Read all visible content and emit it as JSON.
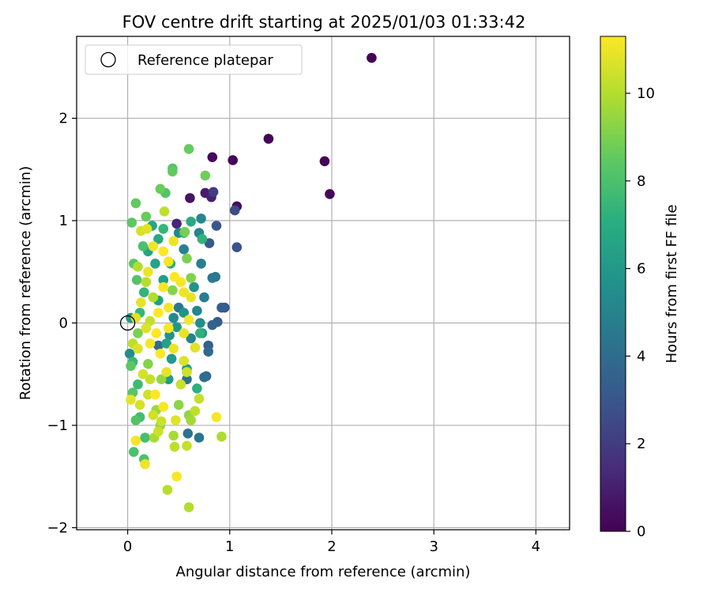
{
  "chart_data": {
    "type": "scatter",
    "title": "FOV centre drift starting at 2025/01/03 01:33:42",
    "xlabel": "Angular distance from reference (arcmin)",
    "ylabel": "Rotation from reference (arcmin)",
    "xlim": [
      -0.5,
      4.33
    ],
    "ylim": [
      -2.02,
      2.8
    ],
    "xticks": [
      0,
      1,
      2,
      3,
      4
    ],
    "yticks": [
      -2,
      -1,
      0,
      1,
      2
    ],
    "xtick_labels": [
      "0",
      "1",
      "2",
      "3",
      "4"
    ],
    "ytick_labels": [
      "−2",
      "−1",
      "0",
      "1",
      "2"
    ],
    "grid": true,
    "legend": {
      "location": "upper-left",
      "entries": [
        {
          "label": "Reference platepar",
          "marker": "open-circle",
          "x": 0,
          "y": 0
        }
      ]
    },
    "colorbar": {
      "label": "Hours from first FF file",
      "colormap": "viridis",
      "range": [
        0,
        11.3
      ],
      "ticks": [
        0,
        2,
        4,
        6,
        8,
        10
      ],
      "tick_labels": [
        "0",
        "2",
        "4",
        "6",
        "8",
        "10"
      ]
    },
    "series": [
      {
        "color_by": "hours",
        "points": [
          {
            "x": 2.39,
            "y": 2.59,
            "c": 0.0
          },
          {
            "x": 1.38,
            "y": 1.8,
            "c": 0.1
          },
          {
            "x": 1.93,
            "y": 1.58,
            "c": 0.1
          },
          {
            "x": 1.03,
            "y": 1.59,
            "c": 0.2
          },
          {
            "x": 1.98,
            "y": 1.26,
            "c": 0.2
          },
          {
            "x": 0.83,
            "y": 1.62,
            "c": 0.3
          },
          {
            "x": 1.07,
            "y": 1.14,
            "c": 0.4
          },
          {
            "x": 0.61,
            "y": 1.22,
            "c": 0.6
          },
          {
            "x": 0.76,
            "y": 1.27,
            "c": 0.8
          },
          {
            "x": 0.82,
            "y": 1.23,
            "c": 1.0
          },
          {
            "x": 0.48,
            "y": 0.97,
            "c": 1.2
          },
          {
            "x": 0.84,
            "y": 1.28,
            "c": 2.0
          },
          {
            "x": 1.05,
            "y": 1.1,
            "c": 2.6
          },
          {
            "x": 1.07,
            "y": 0.74,
            "c": 2.9
          },
          {
            "x": 0.87,
            "y": 0.95,
            "c": 3.0
          },
          {
            "x": 0.8,
            "y": 0.78,
            "c": 3.2
          },
          {
            "x": 0.95,
            "y": 0.15,
            "c": 3.1
          },
          {
            "x": 0.92,
            "y": 0.15,
            "c": 3.4
          },
          {
            "x": 0.88,
            "y": 0.01,
            "c": 3.3
          },
          {
            "x": 0.83,
            "y": -0.02,
            "c": 3.6
          },
          {
            "x": 0.79,
            "y": -0.22,
            "c": 3.5
          },
          {
            "x": 0.79,
            "y": -0.28,
            "c": 3.8
          },
          {
            "x": 0.77,
            "y": -0.52,
            "c": 3.7
          },
          {
            "x": 0.75,
            "y": -0.53,
            "c": 4.0
          },
          {
            "x": 0.58,
            "y": -0.55,
            "c": 4.2
          },
          {
            "x": 0.59,
            "y": -1.08,
            "c": 4.3
          },
          {
            "x": 0.7,
            "y": -1.12,
            "c": 4.4
          },
          {
            "x": 0.86,
            "y": 0.45,
            "c": 4.5
          },
          {
            "x": 0.83,
            "y": 0.44,
            "c": 4.6
          },
          {
            "x": 0.75,
            "y": 0.25,
            "c": 4.8
          },
          {
            "x": 0.72,
            "y": 0.58,
            "c": 4.9
          },
          {
            "x": 0.55,
            "y": 0.72,
            "c": 5.0
          },
          {
            "x": 0.5,
            "y": 0.88,
            "c": 5.1
          },
          {
            "x": 0.7,
            "y": 0.88,
            "c": 5.2
          },
          {
            "x": 0.72,
            "y": 1.02,
            "c": 5.3
          },
          {
            "x": 0.71,
            "y": 0.0,
            "c": 5.5
          },
          {
            "x": 0.73,
            "y": -0.1,
            "c": 5.6
          },
          {
            "x": 0.45,
            "y": 0.05,
            "c": 5.4
          },
          {
            "x": 0.41,
            "y": -0.12,
            "c": 5.7
          },
          {
            "x": 0.55,
            "y": 0.1,
            "c": 5.8
          },
          {
            "x": 0.48,
            "y": -0.04,
            "c": 5.9
          },
          {
            "x": 0.58,
            "y": -0.45,
            "c": 6.0
          },
          {
            "x": 0.43,
            "y": -0.35,
            "c": 6.1
          },
          {
            "x": 0.4,
            "y": -0.55,
            "c": 6.2
          },
          {
            "x": 0.35,
            "y": 0.42,
            "c": 6.3
          },
          {
            "x": 0.3,
            "y": 0.22,
            "c": 6.4
          },
          {
            "x": 0.27,
            "y": 0.58,
            "c": 6.5
          },
          {
            "x": 0.2,
            "y": 0.7,
            "c": 6.6
          },
          {
            "x": 0.24,
            "y": 0.95,
            "c": 6.7
          },
          {
            "x": 0.3,
            "y": 0.82,
            "c": 6.8
          },
          {
            "x": 0.62,
            "y": 0.99,
            "c": 6.9
          },
          {
            "x": 0.55,
            "y": 0.88,
            "c": 7.0
          },
          {
            "x": 0.68,
            "y": -0.64,
            "c": 7.1
          },
          {
            "x": 0.71,
            "y": -0.1,
            "c": 7.2
          },
          {
            "x": 0.73,
            "y": 0.82,
            "c": 7.3
          },
          {
            "x": 0.16,
            "y": 0.3,
            "c": 7.4
          },
          {
            "x": 0.12,
            "y": 0.1,
            "c": 7.5
          },
          {
            "x": 0.05,
            "y": -0.38,
            "c": 7.6
          },
          {
            "x": 0.1,
            "y": -0.6,
            "c": 7.7
          },
          {
            "x": 0.12,
            "y": -0.92,
            "c": 7.8
          },
          {
            "x": 0.17,
            "y": -1.12,
            "c": 7.9
          },
          {
            "x": 0.06,
            "y": -1.26,
            "c": 8.0
          },
          {
            "x": 0.16,
            "y": -1.33,
            "c": 8.1
          },
          {
            "x": 0.08,
            "y": -0.95,
            "c": 8.2
          },
          {
            "x": 0.05,
            "y": -0.68,
            "c": 8.3
          },
          {
            "x": 0.03,
            "y": -0.42,
            "c": 8.4
          },
          {
            "x": 0.09,
            "y": 0.42,
            "c": 8.2
          },
          {
            "x": 0.06,
            "y": 0.58,
            "c": 8.3
          },
          {
            "x": 0.04,
            "y": 0.98,
            "c": 8.4
          },
          {
            "x": 0.08,
            "y": 1.17,
            "c": 8.5
          },
          {
            "x": 0.18,
            "y": 1.04,
            "c": 8.6
          },
          {
            "x": 0.32,
            "y": 1.31,
            "c": 8.7
          },
          {
            "x": 0.37,
            "y": 1.27,
            "c": 8.2
          },
          {
            "x": 0.44,
            "y": 1.48,
            "c": 8.5
          },
          {
            "x": 0.44,
            "y": 1.51,
            "c": 8.3
          },
          {
            "x": 0.6,
            "y": 1.7,
            "c": 8.6
          },
          {
            "x": 0.76,
            "y": 1.44,
            "c": 8.8
          },
          {
            "x": 0.56,
            "y": 0.89,
            "c": 8.9
          },
          {
            "x": 0.58,
            "y": 0.63,
            "c": 9.0
          },
          {
            "x": 0.62,
            "y": 0.44,
            "c": 9.1
          },
          {
            "x": 0.44,
            "y": 0.32,
            "c": 9.2
          },
          {
            "x": 0.5,
            "y": -0.8,
            "c": 9.3
          },
          {
            "x": 0.6,
            "y": -0.9,
            "c": 9.4
          },
          {
            "x": 0.33,
            "y": -0.55,
            "c": 9.5
          },
          {
            "x": 0.28,
            "y": -0.85,
            "c": 9.6
          },
          {
            "x": 0.62,
            "y": -0.95,
            "c": 9.7
          },
          {
            "x": 0.45,
            "y": -1.1,
            "c": 9.8
          },
          {
            "x": 0.92,
            "y": -1.11,
            "c": 9.9
          },
          {
            "x": 0.6,
            "y": -1.8,
            "c": 10.0
          },
          {
            "x": 0.39,
            "y": -1.63,
            "c": 10.1
          },
          {
            "x": 0.46,
            "y": -1.21,
            "c": 10.2
          },
          {
            "x": 0.58,
            "y": -1.2,
            "c": 10.3
          },
          {
            "x": 0.3,
            "y": -1.06,
            "c": 10.4
          },
          {
            "x": 0.2,
            "y": -0.7,
            "c": 10.5
          },
          {
            "x": 0.15,
            "y": -0.5,
            "c": 10.6
          },
          {
            "x": 0.1,
            "y": -0.25,
            "c": 10.7
          },
          {
            "x": 0.08,
            "y": 0.05,
            "c": 10.8
          },
          {
            "x": 0.13,
            "y": 0.2,
            "c": 10.9
          },
          {
            "x": 0.2,
            "y": 0.5,
            "c": 11.0
          },
          {
            "x": 0.25,
            "y": 0.75,
            "c": 11.1
          },
          {
            "x": 0.36,
            "y": 1.09,
            "c": 10.2
          },
          {
            "x": 0.13,
            "y": 0.9,
            "c": 10.6
          },
          {
            "x": 0.19,
            "y": 0.92,
            "c": 10.8
          },
          {
            "x": 0.45,
            "y": 0.8,
            "c": 11.0
          },
          {
            "x": 0.4,
            "y": 0.6,
            "c": 11.2
          },
          {
            "x": 0.35,
            "y": 0.35,
            "c": 11.2
          },
          {
            "x": 0.3,
            "y": 0.1,
            "c": 11.3
          },
          {
            "x": 0.28,
            "y": -0.1,
            "c": 11.3
          },
          {
            "x": 0.32,
            "y": -0.3,
            "c": 11.3
          },
          {
            "x": 0.22,
            "y": -0.2,
            "c": 11.2
          },
          {
            "x": 0.4,
            "y": 0.15,
            "c": 11.1
          },
          {
            "x": 0.55,
            "y": 0.3,
            "c": 11.0
          },
          {
            "x": 0.62,
            "y": 0.25,
            "c": 10.9
          },
          {
            "x": 0.66,
            "y": -0.24,
            "c": 10.8
          },
          {
            "x": 0.55,
            "y": -0.37,
            "c": 10.7
          },
          {
            "x": 0.58,
            "y": -0.48,
            "c": 10.5
          },
          {
            "x": 0.52,
            "y": -0.6,
            "c": 10.4
          },
          {
            "x": 0.7,
            "y": -0.74,
            "c": 10.3
          },
          {
            "x": 0.66,
            "y": -0.86,
            "c": 10.2
          },
          {
            "x": 0.87,
            "y": -0.92,
            "c": 11.2
          },
          {
            "x": 0.48,
            "y": -1.5,
            "c": 11.2
          },
          {
            "x": 0.17,
            "y": -1.38,
            "c": 11.0
          },
          {
            "x": 0.08,
            "y": -1.15,
            "c": 11.1
          },
          {
            "x": 0.03,
            "y": -0.75,
            "c": 10.9
          },
          {
            "x": 0.12,
            "y": -0.8,
            "c": 10.6
          },
          {
            "x": 0.25,
            "y": -0.9,
            "c": 10.5
          },
          {
            "x": 0.33,
            "y": -0.96,
            "c": 10.4
          },
          {
            "x": 0.22,
            "y": -0.55,
            "c": 10.3
          },
          {
            "x": 0.05,
            "y": -0.2,
            "c": 10.2
          },
          {
            "x": 0.18,
            "y": 0.4,
            "c": 10.1
          },
          {
            "x": 0.1,
            "y": 0.55,
            "c": 10.0
          },
          {
            "x": 0.35,
            "y": 0.7,
            "c": 11.3
          },
          {
            "x": 0.46,
            "y": 0.45,
            "c": 11.3
          },
          {
            "x": 0.52,
            "y": 0.4,
            "c": 11.2
          },
          {
            "x": 0.6,
            "y": 0.03,
            "c": 11.1
          },
          {
            "x": 0.45,
            "y": -0.25,
            "c": 11.0
          },
          {
            "x": 0.38,
            "y": -0.48,
            "c": 10.9
          },
          {
            "x": 0.27,
            "y": -0.7,
            "c": 11.3
          },
          {
            "x": 0.35,
            "y": -0.82,
            "c": 11.2
          },
          {
            "x": 0.47,
            "y": -0.95,
            "c": 10.8
          },
          {
            "x": 0.32,
            "y": -1.0,
            "c": 9.5
          },
          {
            "x": 0.26,
            "y": -1.12,
            "c": 9.8
          },
          {
            "x": 0.02,
            "y": -0.3,
            "c": 5.5
          },
          {
            "x": 0.03,
            "y": 0.05,
            "c": 6.0
          },
          {
            "x": 0.3,
            "y": -0.22,
            "c": 4.0
          },
          {
            "x": 0.38,
            "y": -0.2,
            "c": 6.5
          },
          {
            "x": 0.42,
            "y": 0.58,
            "c": 7.0
          },
          {
            "x": 0.35,
            "y": 0.92,
            "c": 7.5
          },
          {
            "x": 0.15,
            "y": 0.75,
            "c": 8.0
          },
          {
            "x": 0.1,
            "y": -0.1,
            "c": 9.0
          },
          {
            "x": 0.2,
            "y": -0.4,
            "c": 9.2
          },
          {
            "x": 0.5,
            "y": 0.15,
            "c": 4.5
          },
          {
            "x": 0.62,
            "y": -0.15,
            "c": 5.0
          },
          {
            "x": 0.68,
            "y": 0.12,
            "c": 5.2
          },
          {
            "x": 0.65,
            "y": 0.35,
            "c": 5.8
          },
          {
            "x": 0.25,
            "y": 0.25,
            "c": 10.0
          },
          {
            "x": 0.22,
            "y": 0.02,
            "c": 10.3
          },
          {
            "x": 0.18,
            "y": -0.05,
            "c": 10.7
          },
          {
            "x": 0.4,
            "y": -0.05,
            "c": 11.2
          },
          {
            "x": 0.55,
            "y": -0.1,
            "c": 10.9
          }
        ]
      }
    ]
  }
}
